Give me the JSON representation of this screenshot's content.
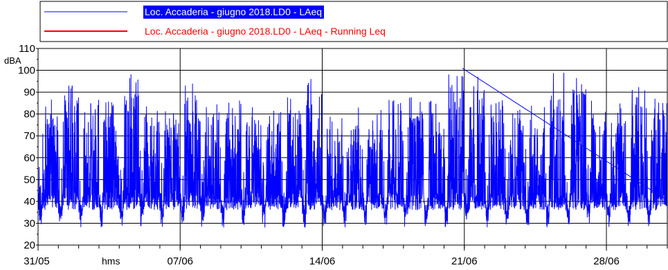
{
  "chart_data": {
    "type": "line",
    "title": "",
    "xlabel": "hms",
    "ylabel": "dBA",
    "ylim": [
      20,
      110
    ],
    "yticks": [
      20,
      30,
      40,
      50,
      60,
      70,
      80,
      90,
      100,
      110
    ],
    "grid": true,
    "legend_position": "top",
    "xlim_days": [
      0,
      31
    ],
    "xticks": [
      {
        "day": 0,
        "label": "31/05"
      },
      {
        "day": 7,
        "label": "07/06"
      },
      {
        "day": 14,
        "label": "14/06"
      },
      {
        "day": 21,
        "label": "21/06"
      },
      {
        "day": 28,
        "label": "28/06"
      }
    ],
    "series": [
      {
        "name": "Loc. Accaderia - giugno 2018.LD0 - LAeq",
        "color": "#0000ff",
        "legend_selected": true,
        "daily_profile": {
          "night_min_dBA": [
            31,
            38
          ],
          "day_range_dBA": [
            35,
            85
          ],
          "peak_dBA": 101
        }
      },
      {
        "name": "Loc. Accaderia - giugno 2018.LD0 - LAeq - Running Leq",
        "color": "#ff0000",
        "legend_selected": false
      }
    ]
  }
}
